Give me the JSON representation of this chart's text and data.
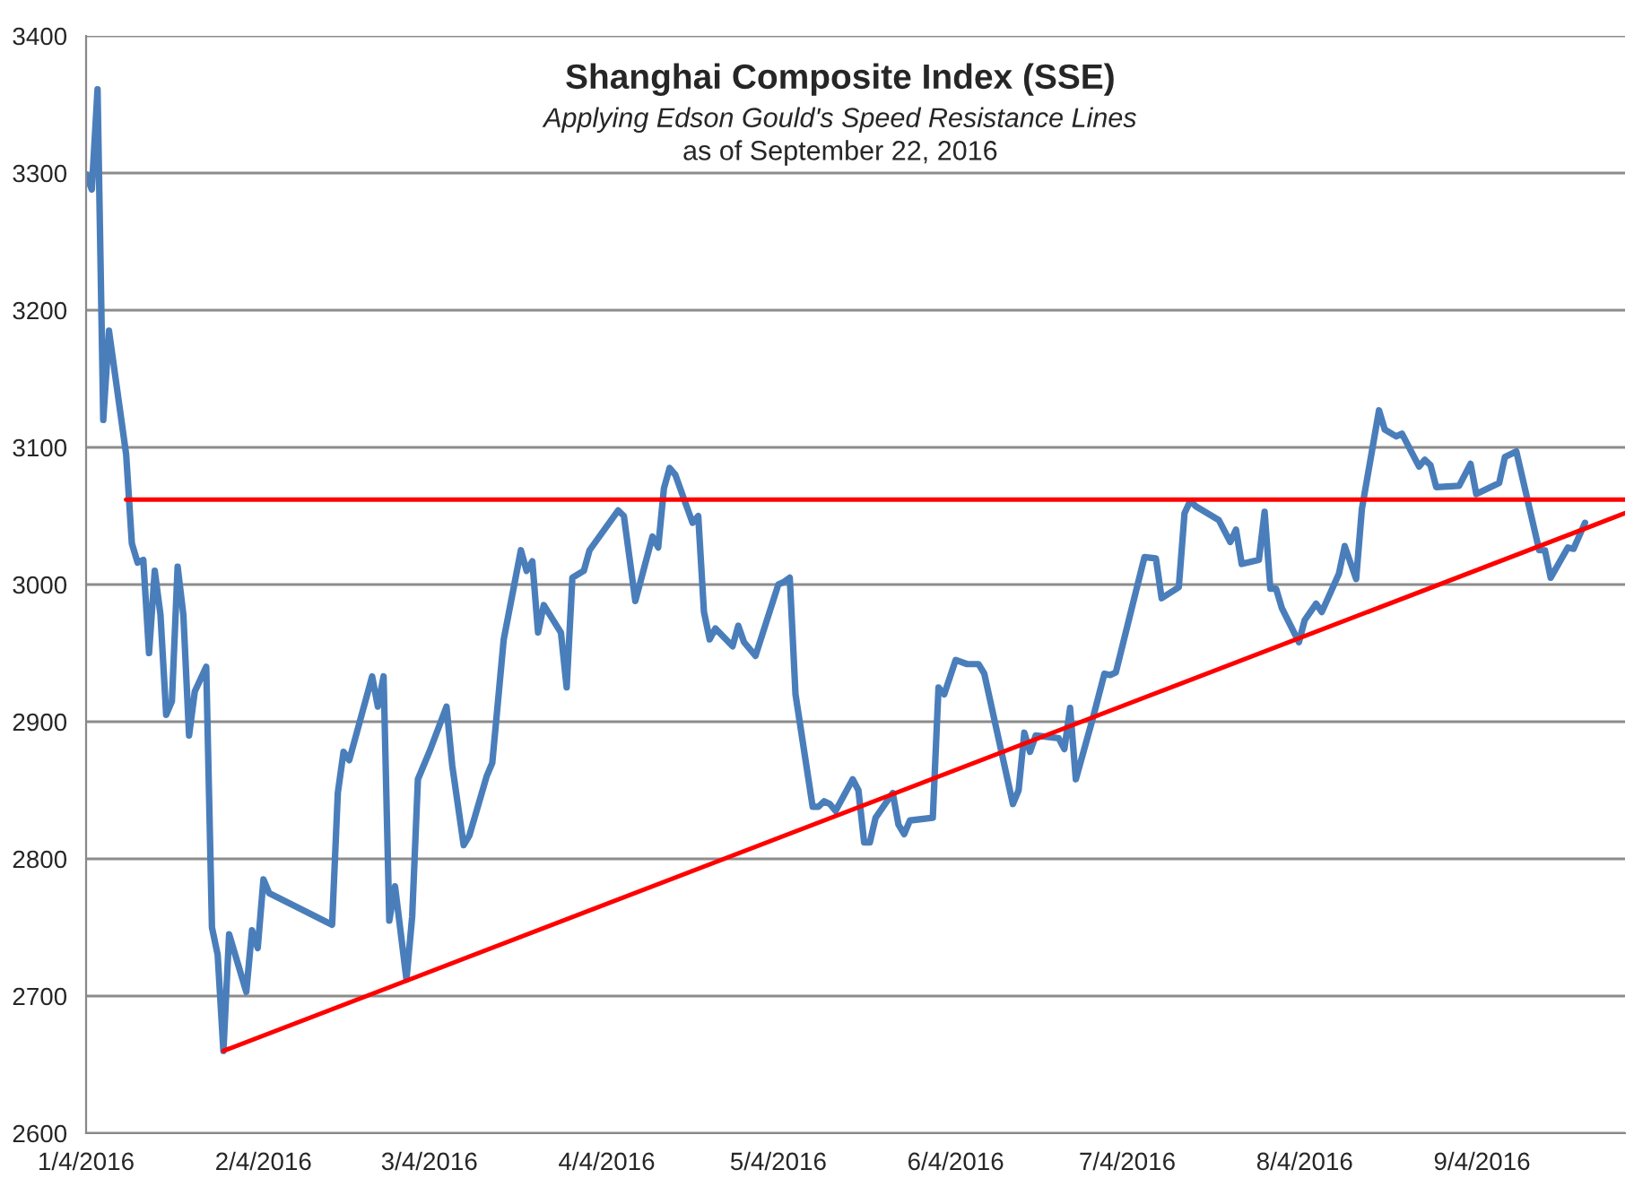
{
  "chart_data": {
    "type": "line",
    "title": "Shanghai Composite Index (SSE)",
    "subtitle": "Applying Edson Gould's Speed Resistance Lines",
    "annotations": [
      "as of September 22, 2016"
    ],
    "xlim": [
      "2016-01-04",
      "2016-09-29"
    ],
    "xticks": [
      {
        "value": "2016-01-04",
        "label": "1/4/2016"
      },
      {
        "value": "2016-02-04",
        "label": "2/4/2016"
      },
      {
        "value": "2016-03-04",
        "label": "3/4/2016"
      },
      {
        "value": "2016-04-04",
        "label": "4/4/2016"
      },
      {
        "value": "2016-05-04",
        "label": "5/4/2016"
      },
      {
        "value": "2016-06-04",
        "label": "6/4/2016"
      },
      {
        "value": "2016-07-04",
        "label": "7/4/2016"
      },
      {
        "value": "2016-08-04",
        "label": "8/4/2016"
      },
      {
        "value": "2016-09-04",
        "label": "9/4/2016"
      }
    ],
    "ylim": [
      2600,
      3400
    ],
    "yticks": [
      2600,
      2700,
      2800,
      2900,
      3000,
      3100,
      3200,
      3300,
      3400
    ],
    "grid": "y",
    "legend": false,
    "marker": "none",
    "line_style": "solid",
    "series": [
      {
        "color": "#4a7ebb",
        "x": [
          "2016-01-04",
          "2016-01-05",
          "2016-01-06",
          "2016-01-07",
          "2016-01-08",
          "2016-01-11",
          "2016-01-12",
          "2016-01-13",
          "2016-01-14",
          "2016-01-15",
          "2016-01-16",
          "2016-01-17",
          "2016-01-18",
          "2016-01-19",
          "2016-01-20",
          "2016-01-21",
          "2016-01-22",
          "2016-01-23",
          "2016-01-25",
          "2016-01-26",
          "2016-01-27",
          "2016-01-28",
          "2016-01-29",
          "2016-02-01",
          "2016-02-02",
          "2016-02-03",
          "2016-02-04",
          "2016-02-05",
          "2016-02-16",
          "2016-02-17",
          "2016-02-18",
          "2016-02-19",
          "2016-02-23",
          "2016-02-24",
          "2016-02-25",
          "2016-02-26",
          "2016-02-27",
          "2016-02-29",
          "2016-03-01",
          "2016-03-02",
          "2016-03-04",
          "2016-03-07",
          "2016-03-08",
          "2016-03-10",
          "2016-03-11",
          "2016-03-14",
          "2016-03-15",
          "2016-03-17",
          "2016-03-20",
          "2016-03-21",
          "2016-03-22",
          "2016-03-23",
          "2016-03-24",
          "2016-03-27",
          "2016-03-28",
          "2016-03-29",
          "2016-03-31",
          "2016-04-01",
          "2016-04-06",
          "2016-04-07",
          "2016-04-09",
          "2016-04-12",
          "2016-04-13",
          "2016-04-14",
          "2016-04-15",
          "2016-04-16",
          "2016-04-19",
          "2016-04-20",
          "2016-04-21",
          "2016-04-22",
          "2016-04-23",
          "2016-04-26",
          "2016-04-27",
          "2016-04-28",
          "2016-04-30",
          "2016-05-04",
          "2016-05-05",
          "2016-05-06",
          "2016-05-07",
          "2016-05-10",
          "2016-05-11",
          "2016-05-12",
          "2016-05-13",
          "2016-05-14",
          "2016-05-17",
          "2016-05-18",
          "2016-05-19",
          "2016-05-20",
          "2016-05-21",
          "2016-05-24",
          "2016-05-25",
          "2016-05-26",
          "2016-05-27",
          "2016-05-31",
          "2016-06-01",
          "2016-06-02",
          "2016-06-04",
          "2016-06-06",
          "2016-06-08",
          "2016-06-09",
          "2016-06-14",
          "2016-06-15",
          "2016-06-16",
          "2016-06-17",
          "2016-06-18",
          "2016-06-22",
          "2016-06-23",
          "2016-06-24",
          "2016-06-25",
          "2016-06-28",
          "2016-06-30",
          "2016-07-01",
          "2016-07-02",
          "2016-07-07",
          "2016-07-09",
          "2016-07-10",
          "2016-07-13",
          "2016-07-14",
          "2016-07-15",
          "2016-07-16",
          "2016-07-20",
          "2016-07-22",
          "2016-07-23",
          "2016-07-24",
          "2016-07-27",
          "2016-07-28",
          "2016-07-29",
          "2016-07-30",
          "2016-07-31",
          "2016-08-03",
          "2016-08-04",
          "2016-08-06",
          "2016-08-07",
          "2016-08-10",
          "2016-08-11",
          "2016-08-13",
          "2016-08-14",
          "2016-08-17",
          "2016-08-18",
          "2016-08-20",
          "2016-08-21",
          "2016-08-24",
          "2016-08-25",
          "2016-08-26",
          "2016-08-27",
          "2016-08-31",
          "2016-09-02",
          "2016-09-03",
          "2016-09-07",
          "2016-09-08",
          "2016-09-10",
          "2016-09-14",
          "2016-09-15",
          "2016-09-16",
          "2016-09-19",
          "2016-09-20",
          "2016-09-22"
        ],
        "values": [
          3299,
          3288,
          3361,
          3120,
          3185,
          3095,
          3030,
          3016,
          3018,
          2950,
          3010,
          2978,
          2905,
          2915,
          3013,
          2978,
          2890,
          2922,
          2940,
          2750,
          2730,
          2660,
          2745,
          2703,
          2748,
          2735,
          2785,
          2775,
          2752,
          2848,
          2878,
          2872,
          2933,
          2911,
          2933,
          2755,
          2780,
          2712,
          2758,
          2858,
          2878,
          2911,
          2868,
          2810,
          2817,
          2860,
          2870,
          2960,
          3025,
          3010,
          3017,
          2965,
          2985,
          2965,
          2925,
          3005,
          3010,
          3025,
          3054,
          3050,
          2988,
          3035,
          3027,
          3070,
          3085,
          3080,
          3045,
          3050,
          2980,
          2960,
          2968,
          2955,
          2970,
          2958,
          2948,
          3000,
          3002,
          3005,
          2920,
          2838,
          2838,
          2842,
          2840,
          2835,
          2858,
          2850,
          2812,
          2812,
          2830,
          2848,
          2825,
          2818,
          2828,
          2830,
          2925,
          2920,
          2945,
          2942,
          2942,
          2935,
          2840,
          2850,
          2892,
          2878,
          2890,
          2888,
          2880,
          2910,
          2858,
          2903,
          2935,
          2934,
          2936,
          3020,
          3019,
          2990,
          2998,
          3052,
          3061,
          3057,
          3047,
          3031,
          3040,
          3015,
          3018,
          3053,
          2997,
          2997,
          2983,
          2958,
          2974,
          2986,
          2980,
          3008,
          3028,
          3004,
          3055,
          3127,
          3113,
          3108,
          3110,
          3086,
          3091,
          3087,
          3071,
          3072,
          3088,
          3066,
          3074,
          3093,
          3097,
          3025,
          3025,
          3005,
          3027,
          3026,
          3045
        ]
      },
      {
        "color": "#ff0000",
        "x": [
          "2016-01-11",
          "2016-09-29"
        ],
        "values": [
          3062,
          3062
        ]
      },
      {
        "color": "#ff0000",
        "x": [
          "2016-01-28",
          "2016-09-29"
        ],
        "values": [
          2660,
          3052
        ]
      }
    ]
  }
}
